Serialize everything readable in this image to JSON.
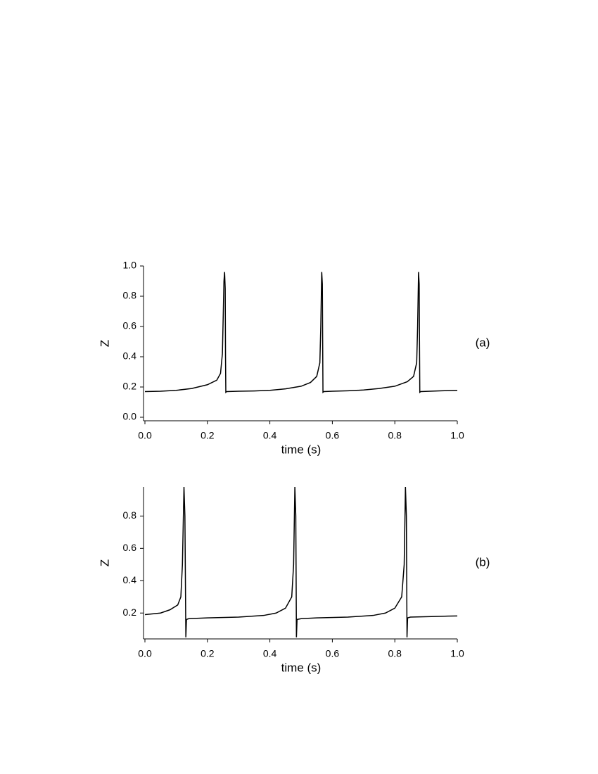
{
  "chart_data": [
    {
      "type": "line",
      "xlabel": "time (s)",
      "ylabel": "Z",
      "panel_label": "(a)",
      "color": "#000000",
      "xlim": [
        0,
        1
      ],
      "ylim": [
        0,
        1
      ],
      "xticks": [
        {
          "value": 0,
          "label": "0.0"
        },
        0.2,
        0.4,
        0.6,
        0.8,
        {
          "value": 1,
          "label": "1.0"
        }
      ],
      "yticks": [
        {
          "value": 0,
          "label": "0.0"
        },
        0.2,
        0.4,
        0.6,
        0.8,
        {
          "value": 1,
          "label": "1.0"
        }
      ],
      "x": [
        0,
        0.05,
        0.1,
        0.15,
        0.2,
        0.23,
        0.242,
        0.248,
        0.251,
        0.253,
        0.255,
        0.257,
        0.258,
        0.259,
        0.262,
        0.3,
        0.35,
        0.4,
        0.45,
        0.5,
        0.53,
        0.55,
        0.56,
        0.563,
        0.566,
        0.568,
        0.569,
        0.57,
        0.573,
        0.6,
        0.65,
        0.7,
        0.75,
        0.8,
        0.84,
        0.86,
        0.87,
        0.873,
        0.876,
        0.878,
        0.879,
        0.88,
        0.883,
        0.95,
        1.0
      ],
      "values": [
        0.17,
        0.172,
        0.178,
        0.19,
        0.215,
        0.245,
        0.29,
        0.42,
        0.7,
        0.9,
        0.96,
        0.85,
        0.4,
        0.165,
        0.17,
        0.172,
        0.174,
        0.178,
        0.188,
        0.205,
        0.23,
        0.27,
        0.36,
        0.6,
        0.96,
        0.88,
        0.5,
        0.165,
        0.17,
        0.172,
        0.175,
        0.18,
        0.19,
        0.205,
        0.235,
        0.27,
        0.36,
        0.6,
        0.96,
        0.88,
        0.5,
        0.165,
        0.17,
        0.175,
        0.178
      ]
    },
    {
      "type": "line",
      "xlabel": "time (s)",
      "ylabel": "Z",
      "panel_label": "(b)",
      "color": "#000000",
      "xlim": [
        0,
        1
      ],
      "ylim": [
        0.04,
        0.98
      ],
      "xticks": [
        {
          "value": 0,
          "label": "0.0"
        },
        0.2,
        0.4,
        0.6,
        0.8,
        {
          "value": 1,
          "label": "1.0"
        }
      ],
      "yticks": [
        0.2,
        0.4,
        0.6,
        0.8
      ],
      "x": [
        0,
        0.05,
        0.08,
        0.105,
        0.115,
        0.12,
        0.125,
        0.128,
        0.13,
        0.131,
        0.133,
        0.14,
        0.2,
        0.3,
        0.38,
        0.42,
        0.45,
        0.47,
        0.476,
        0.48,
        0.483,
        0.485,
        0.487,
        0.5,
        0.55,
        0.65,
        0.73,
        0.77,
        0.8,
        0.822,
        0.83,
        0.834,
        0.837,
        0.839,
        0.841,
        0.85,
        0.95,
        1.0
      ],
      "values": [
        0.19,
        0.2,
        0.22,
        0.25,
        0.3,
        0.5,
        0.98,
        0.8,
        0.3,
        0.05,
        0.16,
        0.165,
        0.17,
        0.175,
        0.185,
        0.2,
        0.23,
        0.3,
        0.5,
        0.98,
        0.8,
        0.05,
        0.16,
        0.165,
        0.17,
        0.175,
        0.185,
        0.2,
        0.23,
        0.3,
        0.5,
        0.98,
        0.8,
        0.05,
        0.17,
        0.175,
        0.18,
        0.182
      ]
    }
  ]
}
